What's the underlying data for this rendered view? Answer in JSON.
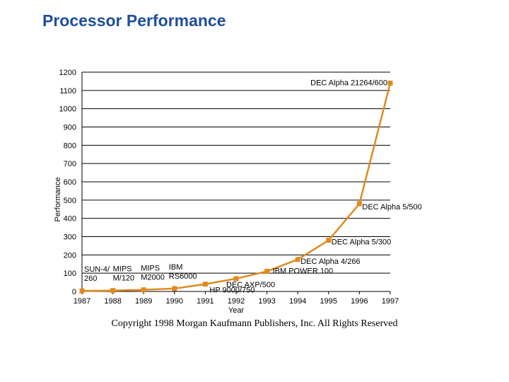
{
  "title": "Processor Performance",
  "copyright": "Copyright 1998 Morgan Kaufmann Publishers, Inc. All Rights Reserved",
  "colors": {
    "title": "#1f4e9c",
    "series": "#e08a1e"
  },
  "chart_data": {
    "type": "line",
    "title": "",
    "xlabel": "Year",
    "ylabel": "Performance",
    "ylim": [
      0,
      1200
    ],
    "xlim": [
      1987,
      1997
    ],
    "grid": "horizontal",
    "yticks": [
      0,
      100,
      200,
      300,
      400,
      500,
      600,
      700,
      800,
      900,
      1000,
      1100,
      1200
    ],
    "xticks": [
      "1987",
      "1988",
      "1989",
      "1990",
      "1991",
      "1992",
      "1993",
      "1994",
      "1995",
      "1996",
      "1997"
    ],
    "series": [
      {
        "values": [
          {
            "x": 1987,
            "y": 3
          },
          {
            "x": 1988,
            "y": 5
          },
          {
            "x": 1989,
            "y": 9
          },
          {
            "x": 1990,
            "y": 16
          },
          {
            "x": 1991,
            "y": 40
          },
          {
            "x": 1992,
            "y": 70
          },
          {
            "x": 1993,
            "y": 110
          },
          {
            "x": 1994,
            "y": 175
          },
          {
            "x": 1995,
            "y": 280
          },
          {
            "x": 1996,
            "y": 480
          },
          {
            "x": 1997,
            "y": 1140
          }
        ]
      }
    ],
    "annotations": [
      {
        "lines": [
          "SUN-4/",
          "260"
        ],
        "x": 1987,
        "y": 3
      },
      {
        "lines": [
          "MIPS",
          "M/120"
        ],
        "x": 1988,
        "y": 5
      },
      {
        "lines": [
          "MIPS",
          "M2000"
        ],
        "x": 1989,
        "y": 9
      },
      {
        "lines": [
          "IBM",
          "RS6000"
        ],
        "x": 1990,
        "y": 16
      },
      {
        "lines": [
          "HP 9000/750"
        ],
        "x": 1991,
        "y": 40
      },
      {
        "lines": [
          "DEC AXP/500"
        ],
        "x": 1992,
        "y": 70
      },
      {
        "lines": [
          "IBM POWER 100"
        ],
        "x": 1993,
        "y": 110
      },
      {
        "lines": [
          "DEC Alpha 4/266"
        ],
        "x": 1994,
        "y": 175
      },
      {
        "lines": [
          "DEC Alpha 5/300"
        ],
        "x": 1995,
        "y": 280
      },
      {
        "lines": [
          "DEC Alpha 5/500"
        ],
        "x": 1996,
        "y": 480
      },
      {
        "lines": [
          "DEC Alpha 21264/600"
        ],
        "x": 1997,
        "y": 1140
      }
    ]
  }
}
